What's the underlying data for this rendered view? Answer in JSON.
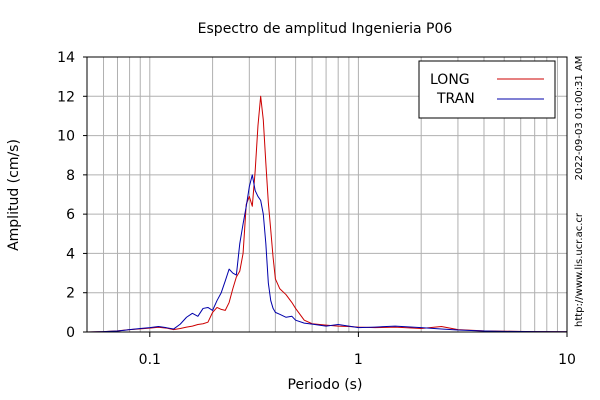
{
  "chart_data": {
    "type": "line",
    "title": "Espectro de amplitud Ingenieria P06",
    "xlabel": "Periodo (s)",
    "ylabel": "Amplitud (cm/s)",
    "x_scale": "log",
    "xlim": [
      0.05,
      10
    ],
    "ylim": [
      0,
      14
    ],
    "x_ticks": [
      {
        "value": 0.1,
        "label": "0.1"
      },
      {
        "value": 1,
        "label": "1"
      },
      {
        "value": 10,
        "label": "10"
      }
    ],
    "y_ticks": [
      {
        "value": 0,
        "label": "0"
      },
      {
        "value": 2,
        "label": "2"
      },
      {
        "value": 4,
        "label": "4"
      },
      {
        "value": 6,
        "label": "6"
      },
      {
        "value": 8,
        "label": "8"
      },
      {
        "value": 10,
        "label": "10"
      },
      {
        "value": 12,
        "label": "12"
      },
      {
        "value": 14,
        "label": "14"
      }
    ],
    "grid": true,
    "legend_position": "top-right",
    "series": [
      {
        "name": "LONG",
        "color": "#cc0000",
        "points": [
          [
            0.05,
            0.0
          ],
          [
            0.06,
            0.02
          ],
          [
            0.07,
            0.06
          ],
          [
            0.08,
            0.12
          ],
          [
            0.09,
            0.16
          ],
          [
            0.1,
            0.2
          ],
          [
            0.11,
            0.24
          ],
          [
            0.12,
            0.2
          ],
          [
            0.13,
            0.12
          ],
          [
            0.14,
            0.18
          ],
          [
            0.15,
            0.25
          ],
          [
            0.16,
            0.3
          ],
          [
            0.17,
            0.38
          ],
          [
            0.18,
            0.42
          ],
          [
            0.19,
            0.5
          ],
          [
            0.2,
            1.0
          ],
          [
            0.21,
            1.25
          ],
          [
            0.22,
            1.15
          ],
          [
            0.23,
            1.1
          ],
          [
            0.24,
            1.5
          ],
          [
            0.25,
            2.2
          ],
          [
            0.26,
            2.8
          ],
          [
            0.27,
            3.1
          ],
          [
            0.28,
            4.0
          ],
          [
            0.29,
            6.5
          ],
          [
            0.3,
            6.9
          ],
          [
            0.31,
            6.4
          ],
          [
            0.32,
            8.2
          ],
          [
            0.33,
            10.5
          ],
          [
            0.34,
            12.0
          ],
          [
            0.35,
            10.8
          ],
          [
            0.36,
            8.6
          ],
          [
            0.37,
            6.6
          ],
          [
            0.38,
            5.2
          ],
          [
            0.39,
            3.8
          ],
          [
            0.4,
            2.7
          ],
          [
            0.42,
            2.2
          ],
          [
            0.45,
            1.9
          ],
          [
            0.48,
            1.5
          ],
          [
            0.5,
            1.2
          ],
          [
            0.55,
            0.6
          ],
          [
            0.6,
            0.42
          ],
          [
            0.7,
            0.35
          ],
          [
            0.8,
            0.3
          ],
          [
            0.9,
            0.28
          ],
          [
            1.0,
            0.25
          ],
          [
            1.2,
            0.22
          ],
          [
            1.5,
            0.25
          ],
          [
            2.0,
            0.18
          ],
          [
            2.5,
            0.28
          ],
          [
            3.0,
            0.12
          ],
          [
            4.0,
            0.06
          ],
          [
            5.0,
            0.04
          ],
          [
            7.0,
            0.02
          ],
          [
            10.0,
            0.01
          ]
        ]
      },
      {
        "name": "TRAN",
        "color": "#0000aa",
        "points": [
          [
            0.05,
            0.0
          ],
          [
            0.06,
            0.02
          ],
          [
            0.07,
            0.05
          ],
          [
            0.08,
            0.12
          ],
          [
            0.09,
            0.18
          ],
          [
            0.1,
            0.22
          ],
          [
            0.11,
            0.28
          ],
          [
            0.12,
            0.22
          ],
          [
            0.13,
            0.15
          ],
          [
            0.14,
            0.4
          ],
          [
            0.15,
            0.75
          ],
          [
            0.16,
            0.95
          ],
          [
            0.17,
            0.8
          ],
          [
            0.18,
            1.2
          ],
          [
            0.19,
            1.25
          ],
          [
            0.2,
            1.1
          ],
          [
            0.21,
            1.6
          ],
          [
            0.22,
            2.0
          ],
          [
            0.23,
            2.6
          ],
          [
            0.24,
            3.2
          ],
          [
            0.25,
            3.0
          ],
          [
            0.26,
            2.9
          ],
          [
            0.27,
            4.5
          ],
          [
            0.28,
            5.5
          ],
          [
            0.29,
            6.4
          ],
          [
            0.3,
            7.4
          ],
          [
            0.31,
            8.0
          ],
          [
            0.32,
            7.2
          ],
          [
            0.33,
            6.9
          ],
          [
            0.34,
            6.7
          ],
          [
            0.35,
            6.0
          ],
          [
            0.36,
            4.5
          ],
          [
            0.37,
            2.5
          ],
          [
            0.38,
            1.6
          ],
          [
            0.39,
            1.2
          ],
          [
            0.4,
            1.0
          ],
          [
            0.42,
            0.9
          ],
          [
            0.45,
            0.75
          ],
          [
            0.48,
            0.8
          ],
          [
            0.5,
            0.6
          ],
          [
            0.55,
            0.45
          ],
          [
            0.6,
            0.4
          ],
          [
            0.7,
            0.3
          ],
          [
            0.8,
            0.38
          ],
          [
            0.9,
            0.3
          ],
          [
            1.0,
            0.22
          ],
          [
            1.2,
            0.25
          ],
          [
            1.5,
            0.3
          ],
          [
            2.0,
            0.22
          ],
          [
            2.5,
            0.15
          ],
          [
            3.0,
            0.1
          ],
          [
            4.0,
            0.05
          ],
          [
            5.0,
            0.03
          ],
          [
            7.0,
            0.02
          ],
          [
            10.0,
            0.01
          ]
        ]
      }
    ]
  },
  "side_labels": {
    "timestamp": "2022-09-03 01:00:31 AM",
    "url": "http://www.lis.ucr.ac.cr"
  }
}
